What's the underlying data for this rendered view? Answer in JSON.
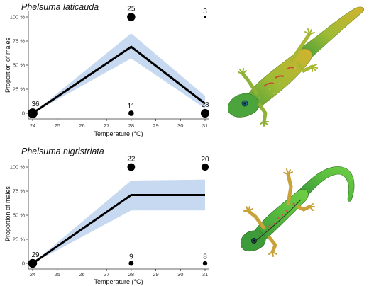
{
  "chart_data": [
    {
      "type": "line",
      "title": "Phelsuma laticauda",
      "xlabel": "Temperature (°C)",
      "ylabel": "Proportion of males",
      "xlim": [
        24,
        31
      ],
      "ylim": [
        0,
        1
      ],
      "x_ticks": [
        "24",
        "25",
        "26",
        "27",
        "28",
        "29",
        "30",
        "31"
      ],
      "y_ticks": [
        "0",
        "25 %",
        "50 %",
        "75 %",
        "100 %"
      ],
      "fit_line": {
        "x": [
          24,
          28,
          31
        ],
        "y": [
          0.0,
          0.69,
          0.1
        ]
      },
      "confidence_band": {
        "x": [
          24,
          28,
          31
        ],
        "lower": [
          0.0,
          0.57,
          0.05
        ],
        "upper": [
          0.0,
          0.83,
          0.18
        ]
      },
      "observed_points": [
        {
          "x": 24,
          "y": 0,
          "n": 36
        },
        {
          "x": 28,
          "y": 1,
          "n": 25
        },
        {
          "x": 28,
          "y": 0,
          "n": 11
        },
        {
          "x": 31,
          "y": 1,
          "n": 3
        },
        {
          "x": 31,
          "y": 0,
          "n": 28
        }
      ]
    },
    {
      "type": "line",
      "title": "Phelsuma nigristriata",
      "xlabel": "Temperature (°C)",
      "ylabel": "Proportion of males",
      "xlim": [
        24,
        31
      ],
      "ylim": [
        0,
        1
      ],
      "x_ticks": [
        "24",
        "25",
        "26",
        "27",
        "28",
        "29",
        "30",
        "31"
      ],
      "y_ticks": [
        "0",
        "25 %",
        "50 %",
        "75 %",
        "100 %"
      ],
      "fit_line": {
        "x": [
          24,
          28,
          31
        ],
        "y": [
          0.0,
          0.71,
          0.71
        ]
      },
      "confidence_band": {
        "x": [
          24,
          28,
          31
        ],
        "lower": [
          0.0,
          0.55,
          0.55
        ],
        "upper": [
          0.0,
          0.86,
          0.87
        ]
      },
      "observed_points": [
        {
          "x": 24,
          "y": 0,
          "n": 29
        },
        {
          "x": 28,
          "y": 1,
          "n": 22
        },
        {
          "x": 28,
          "y": 0,
          "n": 9
        },
        {
          "x": 31,
          "y": 1,
          "n": 20
        },
        {
          "x": 31,
          "y": 0,
          "n": 8
        }
      ]
    }
  ],
  "colors": {
    "line": "#000000",
    "band": "#c6d9f0",
    "points": "#000000",
    "axis": "#333333"
  },
  "images": [
    {
      "icon": "gecko-photo",
      "species": "Phelsuma laticauda",
      "palette": [
        "#8db43a",
        "#c9b92c",
        "#2d9a57"
      ]
    },
    {
      "icon": "gecko-photo",
      "species": "Phelsuma nigristriata",
      "palette": [
        "#5cb83d",
        "#c8a72e",
        "#d45a5a"
      ]
    }
  ]
}
